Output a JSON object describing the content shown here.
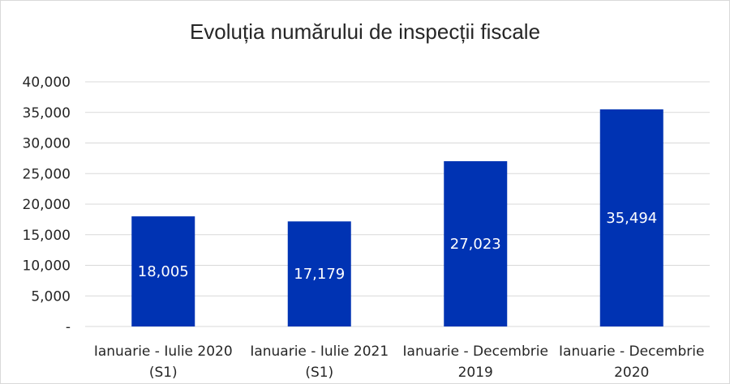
{
  "chart_data": {
    "type": "bar",
    "title": "Evoluția numărului de inspecții fiscale",
    "categories": [
      [
        "Ianuarie - Iulie 2020",
        "(S1)"
      ],
      [
        "Ianuarie - Iulie 2021",
        "(S1)"
      ],
      [
        "Ianuarie - Decembrie",
        "2019"
      ],
      [
        "Ianuarie - Decembrie",
        "2020"
      ]
    ],
    "values": [
      18005,
      17179,
      27023,
      35494
    ],
    "data_labels": [
      "18,005",
      "17,179",
      "27,023",
      "35,494"
    ],
    "ylim": [
      0,
      40000
    ],
    "yticks": [
      0,
      5000,
      10000,
      15000,
      20000,
      25000,
      30000,
      35000,
      40000
    ],
    "ytick_labels": [
      "-",
      "5,000",
      "10,000",
      "15,000",
      "20,000",
      "25,000",
      "30,000",
      "35,000",
      "40,000"
    ],
    "grid": true,
    "legend": "none",
    "bar_color": "#0033B3",
    "grid_color": "#D9D9D9"
  }
}
